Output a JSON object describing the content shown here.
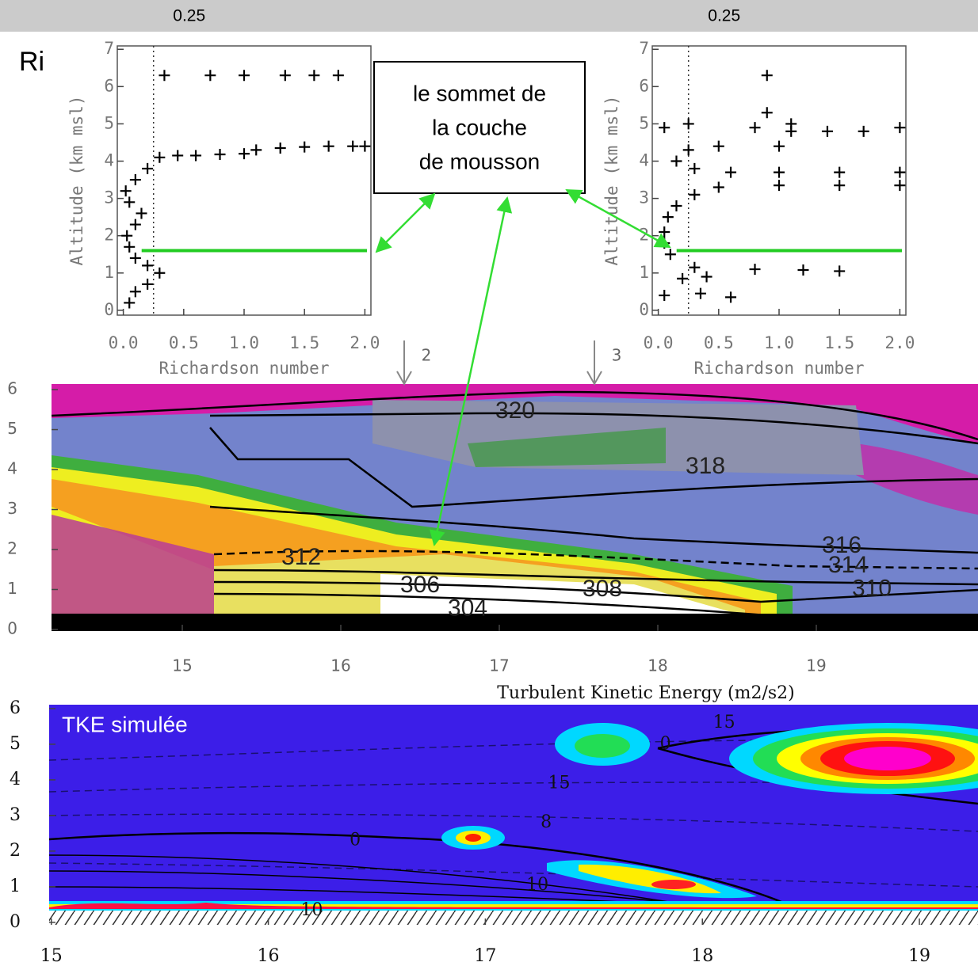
{
  "chart_data": [
    {
      "type": "scatter",
      "label": "Ri",
      "xlabel": "Richardson number",
      "ylabel": "Altitude (km msl)",
      "xlim": [
        -0.05,
        2.05
      ],
      "ylim": [
        -0.13,
        7.09
      ],
      "xticks": [
        {
          "value": 0,
          "label": "0.0"
        },
        {
          "value": 0.5,
          "label": "0.5"
        },
        {
          "value": 1,
          "label": "1.0"
        },
        {
          "value": 1.5,
          "label": "1.5"
        },
        {
          "value": 2,
          "label": "2.0"
        }
      ],
      "yticks": [
        0,
        1,
        2,
        3,
        4,
        5,
        6,
        7
      ],
      "ref_line": {
        "value": 0.25,
        "label": "0.25"
      },
      "highlight_altitude": 1.6,
      "highlight_color": "#22cc22",
      "x": [
        0.34,
        0.72,
        1.0,
        1.34,
        1.58,
        1.78,
        0.05,
        0.1,
        0.2,
        0.3,
        0.2,
        0.1,
        0.05,
        0.03,
        0.1,
        0.15,
        0.05,
        0.02,
        0.1,
        0.2,
        0.3,
        0.45,
        0.6,
        0.8,
        1.0,
        1.1,
        1.3,
        1.5,
        1.7,
        1.9,
        2.0
      ],
      "y": [
        6.3,
        6.3,
        6.3,
        6.3,
        6.3,
        6.3,
        0.2,
        0.5,
        0.7,
        1.0,
        1.2,
        1.4,
        1.7,
        2.0,
        2.3,
        2.6,
        2.9,
        3.2,
        3.5,
        3.8,
        4.1,
        4.15,
        4.15,
        4.18,
        4.2,
        4.3,
        4.35,
        4.38,
        4.4,
        4.4,
        4.4
      ]
    },
    {
      "type": "scatter",
      "xlabel": "Richardson number",
      "ylabel": "Altitude (km msl)",
      "xlim": [
        -0.05,
        2.05
      ],
      "ylim": [
        -0.13,
        7.09
      ],
      "xticks": [
        {
          "value": 0,
          "label": "0.0"
        },
        {
          "value": 0.5,
          "label": "0.5"
        },
        {
          "value": 1,
          "label": "1.0"
        },
        {
          "value": 1.5,
          "label": "1.5"
        },
        {
          "value": 2,
          "label": "2.0"
        }
      ],
      "yticks": [
        0,
        1,
        2,
        3,
        4,
        5,
        6,
        7
      ],
      "ref_line": {
        "value": 0.25,
        "label": "0.25"
      },
      "highlight_altitude": 1.6,
      "highlight_color": "#22cc22",
      "x": [
        0.9,
        0.05,
        0.25,
        0.8,
        0.9,
        1.1,
        1.1,
        1.4,
        1.7,
        2.0,
        1.0,
        0.5,
        0.25,
        0.15,
        0.3,
        0.6,
        1.0,
        1.5,
        2.0,
        0.5,
        1.0,
        1.5,
        2.0,
        0.3,
        0.15,
        0.08,
        0.05,
        0.05,
        0.1,
        0.3,
        0.8,
        1.2,
        1.5,
        0.4,
        0.2,
        0.05,
        0.35,
        0.6
      ],
      "y": [
        6.3,
        4.9,
        5.0,
        4.9,
        5.3,
        5.0,
        4.8,
        4.8,
        4.8,
        4.9,
        4.4,
        4.4,
        4.3,
        4.0,
        3.8,
        3.7,
        3.7,
        3.7,
        3.7,
        3.3,
        3.35,
        3.35,
        3.35,
        3.1,
        2.8,
        2.5,
        2.1,
        1.8,
        1.5,
        1.15,
        1.1,
        1.08,
        1.05,
        0.9,
        0.85,
        0.4,
        0.45,
        0.35
      ]
    },
    {
      "type": "heatmap",
      "xlim": [
        14.175,
        20.02
      ],
      "ylim": [
        -0.04,
        6.14
      ],
      "xticks": [
        15,
        16,
        17,
        18,
        19
      ],
      "yticks": [
        0,
        1,
        2,
        3,
        4,
        5,
        6
      ],
      "events": [
        {
          "x": 16.4,
          "label": "2"
        },
        {
          "x": 17.6,
          "label": "3"
        }
      ],
      "contour_labels": [
        {
          "x": 17.1,
          "y": 5.45,
          "label": "320"
        },
        {
          "x": 18.3,
          "y": 4.06,
          "label": "318"
        },
        {
          "x": 19.16,
          "y": 2.08,
          "label": "316"
        },
        {
          "x": 19.2,
          "y": 1.58,
          "label": "314"
        },
        {
          "x": 19.35,
          "y": 1.0,
          "label": "310"
        },
        {
          "x": 15.75,
          "y": 1.78,
          "label": "312"
        },
        {
          "x": 16.5,
          "y": 1.09,
          "label": "306"
        },
        {
          "x": 17.65,
          "y": 0.99,
          "label": "308"
        },
        {
          "x": 16.8,
          "y": 0.5,
          "label": "304"
        }
      ]
    },
    {
      "type": "contour",
      "title": "Turbulent Kinetic Energy (m2/s2)",
      "label": "TKE simulée",
      "xlim": [
        14.99,
        19.27
      ],
      "ylim": [
        -0.07,
        6.11
      ],
      "xticks": [
        15,
        16,
        17,
        18,
        19
      ],
      "yticks": [
        0,
        1,
        2,
        3,
        4,
        5,
        6
      ],
      "contour_labels": [
        {
          "x": 18.1,
          "y": 5.6,
          "label": "15"
        },
        {
          "x": 17.83,
          "y": 5.0,
          "label": "0"
        },
        {
          "x": 17.34,
          "y": 3.9,
          "label": "15"
        },
        {
          "x": 17.28,
          "y": 2.8,
          "label": "8"
        },
        {
          "x": 16.4,
          "y": 2.3,
          "label": "0"
        },
        {
          "x": 17.24,
          "y": 1.04,
          "label": "10"
        },
        {
          "x": 16.2,
          "y": 0.33,
          "label": "10"
        }
      ]
    }
  ],
  "callout": {
    "lines": [
      "le sommet de",
      "la couche",
      "de mousson"
    ]
  }
}
